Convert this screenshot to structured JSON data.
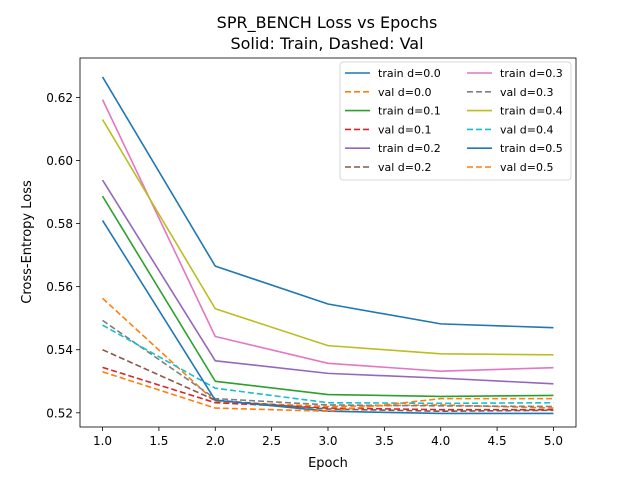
{
  "chart_data": {
    "type": "line",
    "title": "SPR_BENCH Loss vs Epochs",
    "subtitle": "Solid: Train, Dashed: Val",
    "xlabel": "Epoch",
    "ylabel": "Cross-Entropy Loss",
    "x": [
      1.0,
      2.0,
      3.0,
      4.0,
      5.0
    ],
    "xlim": [
      0.8,
      5.2
    ],
    "ylim": [
      0.5155,
      0.6325
    ],
    "xticks": [
      "1.0",
      "1.5",
      "2.0",
      "2.5",
      "3.0",
      "3.5",
      "4.0",
      "4.5",
      "5.0"
    ],
    "xtick_values": [
      1.0,
      1.5,
      2.0,
      2.5,
      3.0,
      3.5,
      4.0,
      4.5,
      5.0
    ],
    "yticks": [
      "0.52",
      "0.54",
      "0.56",
      "0.58",
      "0.60",
      "0.62"
    ],
    "ytick_values": [
      0.52,
      0.54,
      0.56,
      0.58,
      0.6,
      0.62
    ],
    "grid": false,
    "legend_position": "top-right",
    "legend_columns": 2,
    "series": [
      {
        "name": "train d=0.0",
        "style": "solid",
        "color": "#1f77b4",
        "values": [
          0.6265,
          0.5665,
          0.5545,
          0.5482,
          0.547
        ]
      },
      {
        "name": "val d=0.0",
        "style": "dashed",
        "color": "#ff7f0e",
        "values": [
          0.5563,
          0.5235,
          0.522,
          0.5225,
          0.5215
        ]
      },
      {
        "name": "train d=0.1",
        "style": "solid",
        "color": "#2ca02c",
        "values": [
          0.5887,
          0.53,
          0.5258,
          0.5252,
          0.5255
        ]
      },
      {
        "name": "val d=0.1",
        "style": "dashed",
        "color": "#d62728",
        "values": [
          0.5344,
          0.5232,
          0.5215,
          0.521,
          0.521
        ]
      },
      {
        "name": "train d=0.2",
        "style": "solid",
        "color": "#9467bd",
        "values": [
          0.5938,
          0.5365,
          0.5325,
          0.531,
          0.5292
        ]
      },
      {
        "name": "val d=0.2",
        "style": "dashed",
        "color": "#8c564b",
        "values": [
          0.54,
          0.524,
          0.5212,
          0.5205,
          0.5208
        ]
      },
      {
        "name": "train d=0.3",
        "style": "solid",
        "color": "#e377c2",
        "values": [
          0.6193,
          0.5442,
          0.5357,
          0.5332,
          0.5343
        ]
      },
      {
        "name": "val d=0.3",
        "style": "dashed",
        "color": "#7f7f7f",
        "values": [
          0.5493,
          0.5245,
          0.5225,
          0.5222,
          0.522
        ]
      },
      {
        "name": "train d=0.4",
        "style": "solid",
        "color": "#bcbd22",
        "values": [
          0.613,
          0.553,
          0.5413,
          0.5387,
          0.5384
        ]
      },
      {
        "name": "val d=0.4",
        "style": "dashed",
        "color": "#17becf",
        "values": [
          0.5478,
          0.5278,
          0.5232,
          0.523,
          0.5232
        ]
      },
      {
        "name": "train d=0.5",
        "style": "solid",
        "color": "#1f77b4",
        "values": [
          0.581,
          0.524,
          0.5205,
          0.5198,
          0.5198
        ]
      },
      {
        "name": "val d=0.5",
        "style": "dashed",
        "color": "#ff7f0e",
        "values": [
          0.533,
          0.5215,
          0.5205,
          0.5245,
          0.5245
        ]
      }
    ]
  }
}
